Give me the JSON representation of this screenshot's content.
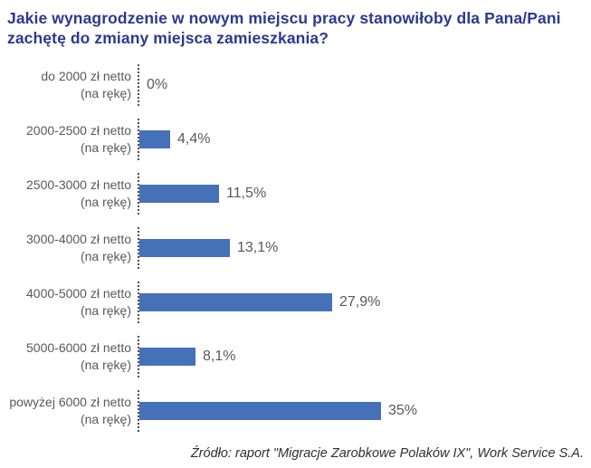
{
  "title": "Jakie wynagrodzenie w nowym miejscu pracy stanowiłoby dla Pana/Pani zachętę do zmiany miejsca zamieszkania?",
  "source": "Źródło: raport \"Migracje Zarobkowe Polaków IX\", Work Service S.A.",
  "colors": {
    "title": "#2b3990",
    "bar": "#4571b8",
    "category_label": "#58595b",
    "value_label": "#58595b",
    "axis_tick": "#4f4f4f",
    "source_text": "#2f2f2f"
  },
  "chart_data": {
    "type": "bar",
    "orientation": "horizontal",
    "title": "Jakie wynagrodzenie w nowym miejscu pracy stanowiłoby dla Pana/Pani zachętę do zmiany miejsca zamieszkania?",
    "xlabel": "",
    "ylabel": "",
    "xlim": [
      0,
      37
    ],
    "grid": false,
    "legend": "none",
    "categories": [
      "do 2000 zł netto (na rękę)",
      "2000-2500 zł netto (na rękę)",
      "2500-3000 zł netto (na rękę)",
      "3000-4000 zł netto (na rękę)",
      "4000-5000 zł netto (na rękę)",
      "5000-6000 zł netto (na rękę)",
      "powyżej 6000 zł netto (na rękę)"
    ],
    "values": [
      0,
      4.4,
      11.5,
      13.1,
      27.9,
      8.1,
      35
    ],
    "rows": [
      {
        "label_line1": "do 2000 zł netto",
        "label_line2": "(na rękę)",
        "value": 0,
        "display": "0%"
      },
      {
        "label_line1": "2000-2500 zł netto",
        "label_line2": "(na rękę)",
        "value": 4.4,
        "display": "4,4%"
      },
      {
        "label_line1": "2500-3000 zł netto",
        "label_line2": "(na rękę)",
        "value": 11.5,
        "display": "11,5%"
      },
      {
        "label_line1": "3000-4000 zł netto",
        "label_line2": "(na rękę)",
        "value": 13.1,
        "display": "13,1%"
      },
      {
        "label_line1": "4000-5000 zł netto",
        "label_line2": "(na rękę)",
        "value": 27.9,
        "display": "27,9%"
      },
      {
        "label_line1": "5000-6000 zł netto",
        "label_line2": "(na rękę)",
        "value": 8.1,
        "display": "8,1%"
      },
      {
        "label_line1": "powyżej 6000 zł netto",
        "label_line2": "(na rękę)",
        "value": 35,
        "display": "35%"
      }
    ]
  }
}
